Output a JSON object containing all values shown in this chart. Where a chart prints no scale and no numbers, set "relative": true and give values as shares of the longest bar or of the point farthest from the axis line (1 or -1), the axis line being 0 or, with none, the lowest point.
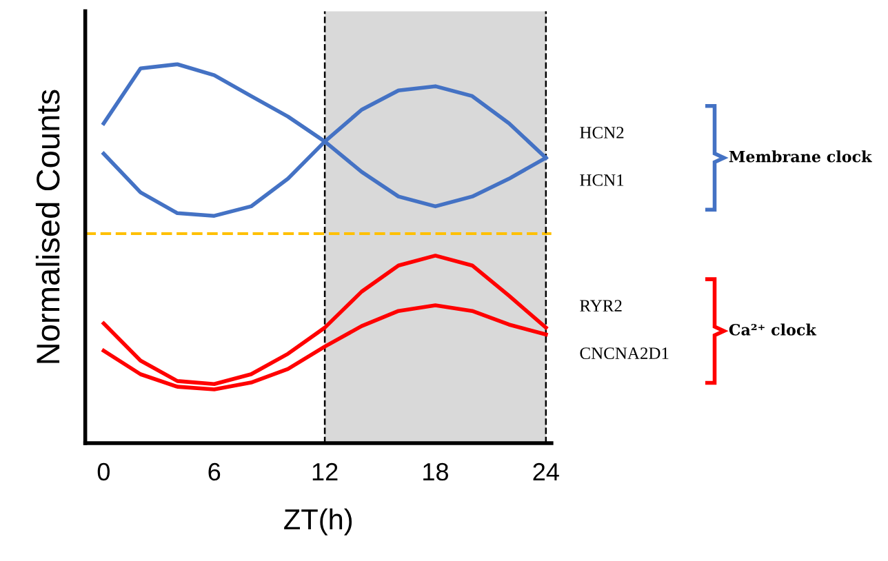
{
  "chart_data": {
    "type": "line",
    "relative": true,
    "xlabel": "ZT(h)",
    "ylabel": "Normalised Counts",
    "x": [
      0,
      2,
      4,
      6,
      8,
      10,
      12,
      14,
      16,
      18,
      20,
      22,
      24
    ],
    "xlim": [
      -1,
      24.3
    ],
    "xticks": [
      0,
      6,
      12,
      18,
      24
    ],
    "tick_labels": "x",
    "grid": false,
    "legend": false,
    "marker": "none",
    "line_style": "solid",
    "series": [
      {
        "name": "HCN2",
        "color": "#4472c4",
        "values": [
          0.764,
          0.662,
          0.607,
          0.6,
          0.625,
          0.698,
          0.796,
          0.88,
          0.931,
          0.942,
          0.916,
          0.844,
          0.753
        ]
      },
      {
        "name": "HCN1",
        "color": "#4472c4",
        "values": [
          0.844,
          0.989,
          1.0,
          0.971,
          0.916,
          0.862,
          0.796,
          0.716,
          0.651,
          0.625,
          0.651,
          0.698,
          0.753
        ]
      },
      {
        "name": "RYR2",
        "color": "#ff0000",
        "values": [
          0.316,
          0.218,
          0.164,
          0.156,
          0.182,
          0.236,
          0.305,
          0.4,
          0.469,
          0.495,
          0.469,
          0.389,
          0.305
        ]
      },
      {
        "name": "CNCNA2D1",
        "color": "#ff0000",
        "values": [
          0.244,
          0.182,
          0.149,
          0.142,
          0.16,
          0.196,
          0.255,
          0.309,
          0.349,
          0.364,
          0.349,
          0.313,
          0.287
        ]
      }
    ],
    "ref_lines": [
      {
        "axis": "y",
        "value": 0.553,
        "color": "#ffc000",
        "line_style": "dashed"
      },
      {
        "axis": "x",
        "value": 12,
        "color": "#000000",
        "line_style": "dashed"
      },
      {
        "axis": "x",
        "value": 24,
        "color": "#000000",
        "line_style": "dashed"
      }
    ],
    "bands": [
      {
        "axis": "x",
        "from": 12,
        "to": 24,
        "color": "#d9d9d9"
      }
    ],
    "annotations": [
      "Membrane clock",
      "Ca²⁺ clock"
    ]
  }
}
